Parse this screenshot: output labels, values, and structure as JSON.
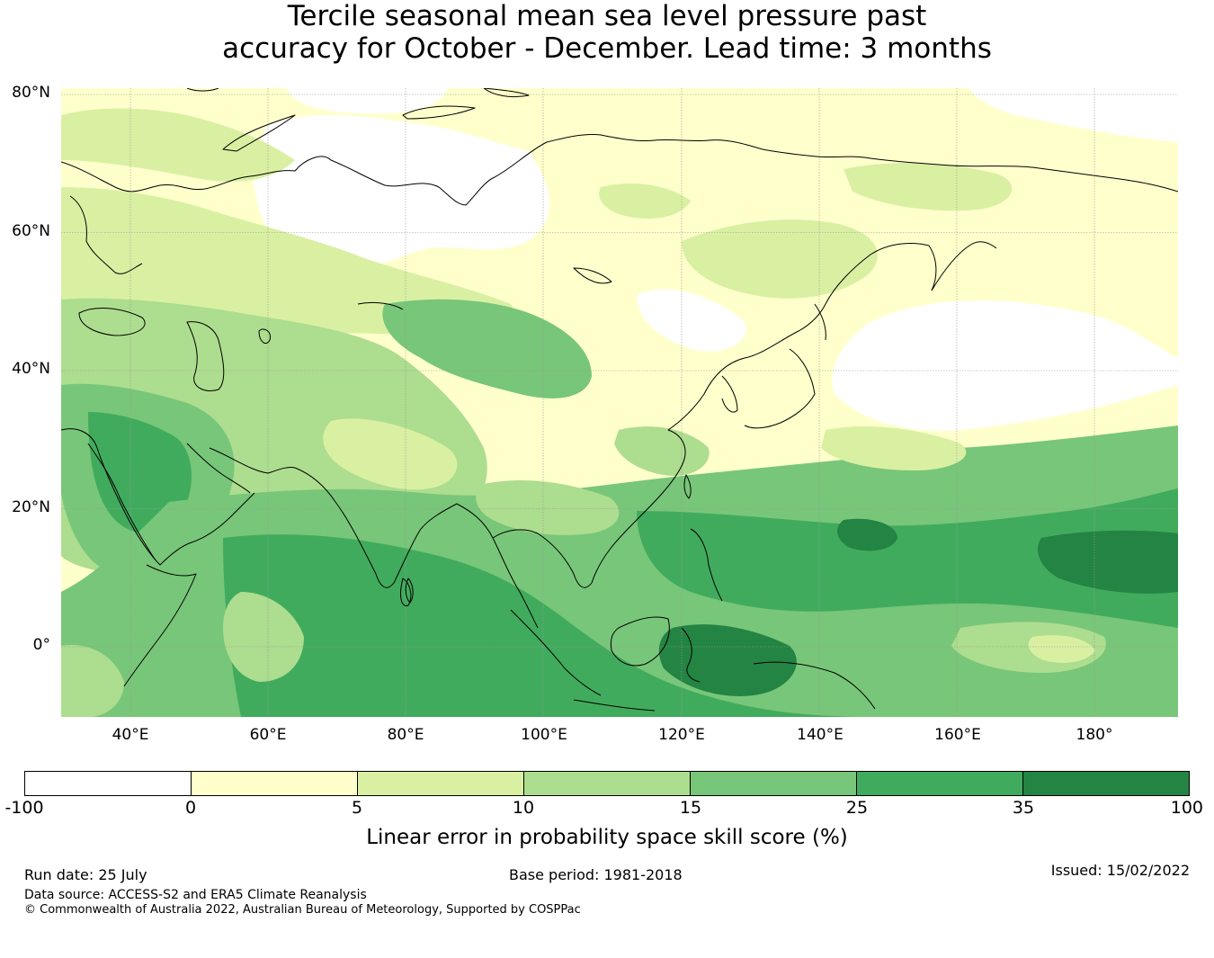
{
  "title": {
    "line1": "Tercile seasonal mean sea level pressure past",
    "line2": "accuracy for October - December. Lead time: 3 months"
  },
  "map": {
    "lat_labels": [
      "80°N",
      "60°N",
      "40°N",
      "20°N",
      "0°"
    ],
    "lon_labels": [
      "40°E",
      "60°E",
      "80°E",
      "100°E",
      "120°E",
      "140°E",
      "160°E",
      "180°"
    ],
    "extent": {
      "lon_min": 30,
      "lon_max": 192,
      "lat_min": -10,
      "lat_max": 81
    },
    "ocean_color": "#ffffcc",
    "coastline_color": "#000000",
    "gridline_color": "#999999"
  },
  "colorbar": {
    "ticks": [
      "-100",
      "0",
      "5",
      "10",
      "15",
      "25",
      "35",
      "100"
    ],
    "colors": [
      "#ffffff",
      "#ffffcc",
      "#d9f0a3",
      "#addd8e",
      "#78c679",
      "#41ab5d",
      "#238443"
    ],
    "label": "Linear error in probability space skill score (%)"
  },
  "footer": {
    "run_date": "Run date: 25 July",
    "base_period": "Base period: 1981-2018",
    "issued": "Issued: 15/02/2022",
    "data_source": "Data source: ACCESS-S2 and ERA5 Climate Reanalysis",
    "copyright": "© Commonwealth of Australia 2022, Australian Bureau of Meteorology, Supported by COSPPac"
  }
}
